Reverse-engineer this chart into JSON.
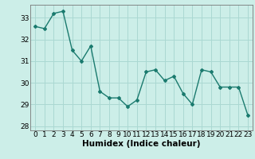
{
  "x": [
    0,
    1,
    2,
    3,
    4,
    5,
    6,
    7,
    8,
    9,
    10,
    11,
    12,
    13,
    14,
    15,
    16,
    17,
    18,
    19,
    20,
    21,
    22,
    23
  ],
  "y": [
    32.6,
    32.5,
    33.2,
    33.3,
    31.5,
    31.0,
    31.7,
    29.6,
    29.3,
    29.3,
    28.9,
    29.2,
    30.5,
    30.6,
    30.1,
    30.3,
    29.5,
    29.0,
    30.6,
    30.5,
    29.8,
    29.8,
    29.8,
    28.5
  ],
  "line_color": "#1a7a6e",
  "marker": "D",
  "marker_size": 2.0,
  "bg_color": "#cceee8",
  "grid_color": "#aad8d2",
  "xlabel": "Humidex (Indice chaleur)",
  "xlim": [
    -0.5,
    23.5
  ],
  "ylim": [
    27.8,
    33.6
  ],
  "yticks": [
    28,
    29,
    30,
    31,
    32,
    33
  ],
  "xticks": [
    0,
    1,
    2,
    3,
    4,
    5,
    6,
    7,
    8,
    9,
    10,
    11,
    12,
    13,
    14,
    15,
    16,
    17,
    18,
    19,
    20,
    21,
    22,
    23
  ],
  "xlabel_fontsize": 7.5,
  "tick_fontsize": 6.5,
  "line_width": 1.0
}
